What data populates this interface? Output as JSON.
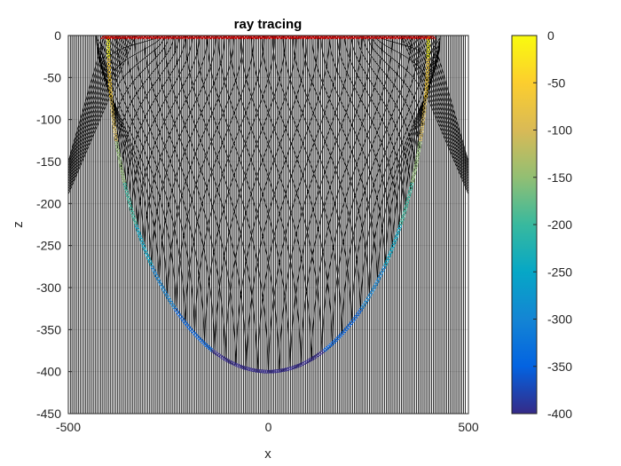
{
  "chart_data": {
    "type": "line",
    "title": "ray tracing",
    "xlabel": "x",
    "ylabel": "z",
    "xlim": [
      -500,
      500
    ],
    "ylim": [
      -450,
      0
    ],
    "xticks": [
      "-500",
      "0",
      "500"
    ],
    "yticks": [
      "0",
      "-50",
      "-100",
      "-150",
      "-200",
      "-250",
      "-300",
      "-350",
      "-400",
      "-450"
    ],
    "grid": true,
    "series": [
      {
        "kind": "sources",
        "marker": "x",
        "color": "#cc0000",
        "x_range": [
          -410,
          410
        ],
        "z": 0
      },
      {
        "kind": "reflector",
        "shape": "semicircle",
        "center": [
          0,
          0
        ],
        "radius": 400,
        "x_range": [
          -500,
          500
        ],
        "color_by_depth": true
      },
      {
        "kind": "rays",
        "color": "#000000",
        "description_values": {
          "vertical_ray_x_range": [
            -495,
            495
          ],
          "reflected_ray_x_range": [
            -500,
            500
          ]
        }
      }
    ],
    "colorbar": {
      "range": [
        -400,
        0
      ],
      "ticks": [
        "0",
        "-50",
        "-100",
        "-150",
        "-200",
        "-250",
        "-300",
        "-350",
        "-400"
      ],
      "colormap": "parula",
      "colors": [
        "#352a87",
        "#0363e1",
        "#1485d4",
        "#06a7c6",
        "#38b99e",
        "#92bf73",
        "#d9ba56",
        "#fcce2e",
        "#f9fb0e"
      ]
    }
  }
}
